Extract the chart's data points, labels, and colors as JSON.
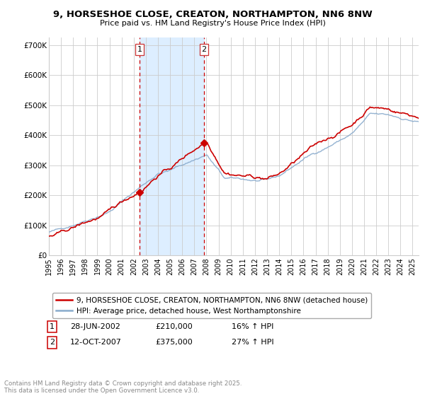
{
  "title": "9, HORSESHOE CLOSE, CREATON, NORTHAMPTON, NN6 8NW",
  "subtitle": "Price paid vs. HM Land Registry's House Price Index (HPI)",
  "legend_line1": "9, HORSESHOE CLOSE, CREATON, NORTHAMPTON, NN6 8NW (detached house)",
  "legend_line2": "HPI: Average price, detached house, West Northamptonshire",
  "annotation1_date": "28-JUN-2002",
  "annotation1_price": "£210,000",
  "annotation1_hpi": "16% ↑ HPI",
  "annotation2_date": "12-OCT-2007",
  "annotation2_price": "£375,000",
  "annotation2_hpi": "27% ↑ HPI",
  "copyright": "Contains HM Land Registry data © Crown copyright and database right 2025.\nThis data is licensed under the Open Government Licence v3.0.",
  "sale1_year": 2002.49,
  "sale2_year": 2007.79,
  "sale1_value": 210000,
  "sale2_value": 375000,
  "red_color": "#cc0000",
  "blue_color": "#88aacc",
  "shade_color": "#ddeeff",
  "background_color": "#ffffff",
  "grid_color": "#cccccc",
  "xlim_left": 1995.0,
  "xlim_right": 2025.5,
  "ylim_bottom": 0,
  "ylim_top": 725000
}
